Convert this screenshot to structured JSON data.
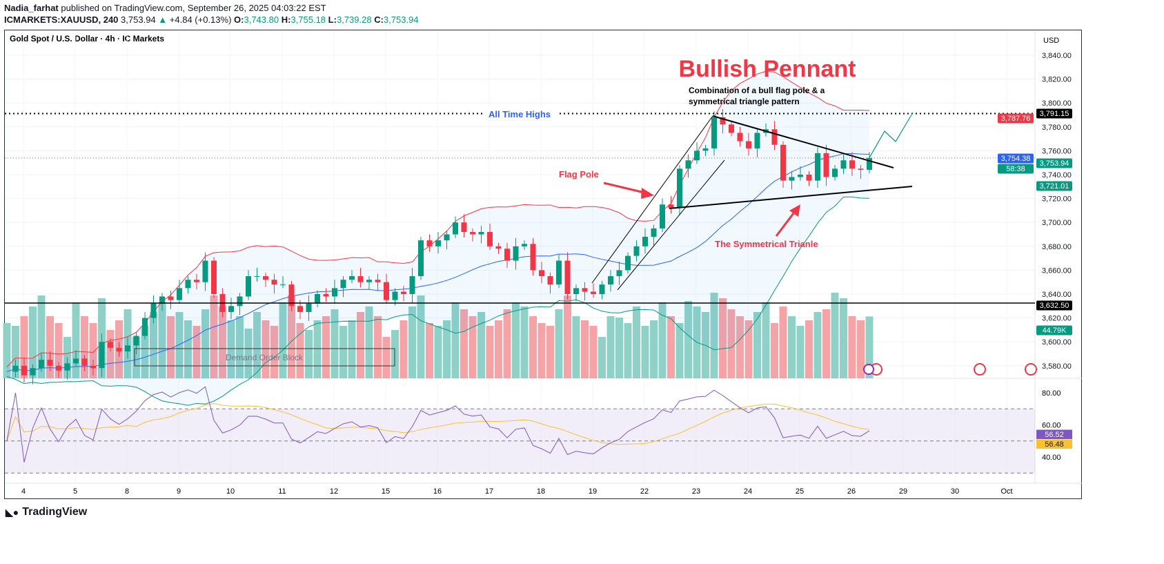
{
  "header": {
    "author": "Nadia_farhat",
    "published": "published on TradingView.com, September 26, 2025 04:03:22 EST",
    "symbol": "ICMARKETS:XAUUSD, 240",
    "last": "3,753.94",
    "arrow": "▲",
    "change": "+4.84 (+0.13%)",
    "o_label": "O:",
    "o": "3,743.80",
    "h_label": "H:",
    "h": "3,755.18",
    "l_label": "L:",
    "l": "3,739.28",
    "c_label": "C:",
    "c": "3,753.94"
  },
  "footer": {
    "brand": "TradingView"
  },
  "colors": {
    "up": "#089981",
    "down": "#f23645",
    "volUp": "#8fd1c7",
    "volDown": "#f5a3a7",
    "bbUpper": "#f23645",
    "bbLower": "#089981",
    "basis": "#2962ff",
    "rsi": "#7e57c2",
    "rsiMa": "#fbc02d"
  },
  "chart_data": {
    "type": "candlestick",
    "title": "Gold Spot / U.S. Dollar · 4h · IC Markets",
    "currency": "USD",
    "ylim": [
      3570,
      3850
    ],
    "yticks": [
      3580,
      3600,
      3620,
      3640,
      3660,
      3680,
      3700,
      3720,
      3740,
      3760,
      3780,
      3800,
      3820,
      3840
    ],
    "xticks": [
      "4",
      "5",
      "8",
      "9",
      "10",
      "11",
      "12",
      "15",
      "16",
      "17",
      "18",
      "19",
      "22",
      "23",
      "24",
      "25",
      "26",
      "29",
      "30",
      "Oct"
    ],
    "closes": [
      3575,
      3580,
      3572,
      3578,
      3585,
      3580,
      3576,
      3582,
      3586,
      3580,
      3578,
      3600,
      3595,
      3592,
      3597,
      3605,
      3620,
      3632,
      3638,
      3635,
      3645,
      3652,
      3650,
      3668,
      3640,
      3625,
      3630,
      3638,
      3655,
      3655,
      3652,
      3648,
      3648,
      3630,
      3625,
      3632,
      3640,
      3638,
      3645,
      3652,
      3655,
      3650,
      3652,
      3650,
      3635,
      3642,
      3640,
      3655,
      3685,
      3680,
      3685,
      3690,
      3700,
      3692,
      3690,
      3692,
      3680,
      3678,
      3668,
      3680,
      3682,
      3660,
      3655,
      3648,
      3668,
      3640,
      3645,
      3642,
      3640,
      3648,
      3655,
      3660,
      3672,
      3680,
      3688,
      3695,
      3715,
      3712,
      3745,
      3752,
      3760,
      3762,
      3788,
      3782,
      3775,
      3768,
      3762,
      3775,
      3778,
      3765,
      3735,
      3738,
      3740,
      3735,
      3758,
      3738,
      3745,
      3752,
      3745,
      3744,
      3754
    ],
    "volumes": [
      40,
      38,
      45,
      52,
      60,
      45,
      40,
      30,
      55,
      45,
      40,
      58,
      35,
      42,
      50,
      30,
      38,
      48,
      55,
      45,
      48,
      42,
      38,
      50,
      60,
      52,
      42,
      45,
      36,
      48,
      42,
      38,
      55,
      60,
      40,
      35,
      42,
      45,
      50,
      38,
      42,
      48,
      52,
      45,
      30,
      35,
      42,
      52,
      60,
      40,
      38,
      42,
      55,
      50,
      45,
      48,
      38,
      42,
      50,
      55,
      52,
      45,
      40,
      38,
      50,
      60,
      45,
      42,
      38,
      30,
      45,
      44,
      40,
      52,
      38,
      42,
      55,
      45,
      40,
      56,
      52,
      48,
      62,
      58,
      50,
      45,
      42,
      48,
      55,
      40,
      52,
      45,
      38,
      42,
      48,
      50,
      62,
      58,
      45,
      42,
      44.79
    ],
    "rsi_yticks": [
      40,
      60,
      80
    ],
    "levels": {
      "ath": {
        "value": 3791.15,
        "label": "3,791.15"
      },
      "support": {
        "value": 3632.5,
        "label": "3,632.50"
      }
    },
    "price_labels": [
      {
        "text": "3,787.76",
        "value": 3787.76,
        "color": "#f23645"
      },
      {
        "text": "3,754.38",
        "value": 3754.38,
        "color": "#2962ff"
      },
      {
        "text": "3,753.94",
        "value": 3753.94,
        "color": "#089981",
        "sub": "58:38"
      },
      {
        "text": "3,721.01",
        "value": 3721.01,
        "color": "#089981"
      }
    ],
    "volume_label": "44.79K",
    "rsi_labels": [
      {
        "text": "56.52",
        "color": "#7e57c2"
      },
      {
        "text": "56.48",
        "color": "#fbc02d"
      }
    ],
    "annotations": {
      "title": "Bullish Pennant",
      "subtitle1": "Combination of a bull flag pole & a",
      "subtitle2": "symmetrical triangle pattern",
      "ath": "All Time Highs",
      "flagpole": "Flag Pole",
      "triangle": "The Symmetrical Trianle",
      "demand": "Demand Order Block"
    }
  }
}
